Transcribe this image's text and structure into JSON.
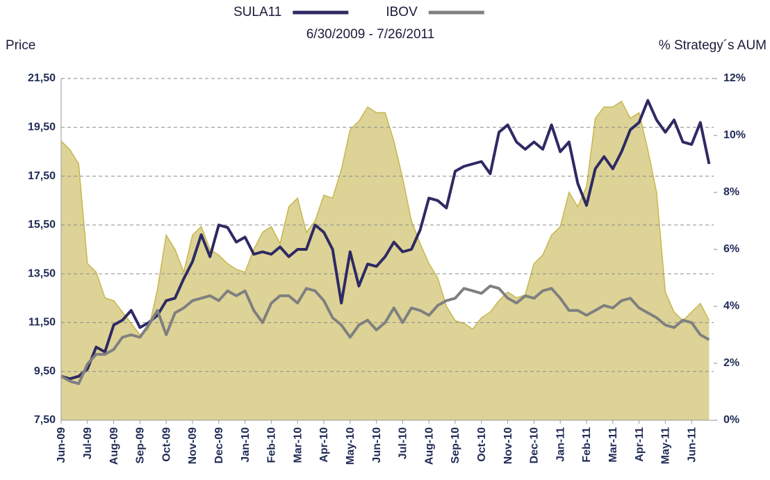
{
  "chart_data": {
    "type": "line",
    "subtitle": "6/30/2009 - 7/26/2011",
    "ylabel": "Price",
    "y2label": "% Strategy´s AUM",
    "categories": [
      "Jun-09",
      null,
      null,
      "Jul-09",
      null,
      null,
      "Aug-09",
      null,
      null,
      "Sep-09",
      null,
      null,
      "Oct-09",
      null,
      null,
      "Nov-09",
      null,
      null,
      "Dec-09",
      null,
      null,
      "Jan-10",
      null,
      null,
      "Feb-10",
      null,
      null,
      "Mar-10",
      null,
      null,
      "Apr-10",
      null,
      null,
      "May-10",
      null,
      null,
      "Jun-10",
      null,
      null,
      "Jul-10",
      null,
      null,
      "Aug-10",
      null,
      null,
      "Sep-10",
      null,
      null,
      "Oct-10",
      null,
      null,
      "Nov-10",
      null,
      null,
      "Dec-10",
      null,
      null,
      "Jan-11",
      null,
      null,
      "Feb-11",
      null,
      null,
      "Mar-11",
      null,
      null,
      "Apr-11",
      null,
      null,
      "May-11",
      null,
      null,
      "Jun-11",
      null,
      null
    ],
    "series": [
      {
        "name": "SULA11",
        "color": "#2e2a63",
        "values": [
          9.3,
          9.2,
          9.3,
          9.6,
          10.5,
          10.3,
          11.4,
          11.6,
          12.0,
          11.3,
          11.5,
          11.8,
          12.4,
          12.5,
          13.3,
          14.0,
          15.1,
          14.2,
          15.5,
          15.4,
          14.8,
          15.0,
          14.3,
          14.4,
          14.3,
          14.6,
          14.2,
          14.5,
          14.5,
          15.5,
          15.2,
          14.5,
          12.3,
          14.4,
          13.0,
          13.9,
          13.8,
          14.2,
          14.8,
          14.4,
          14.5,
          15.3,
          16.6,
          16.5,
          16.2,
          17.7,
          17.9,
          18.0,
          18.1,
          17.6,
          19.3,
          19.6,
          18.9,
          18.6,
          18.9,
          18.6,
          19.6,
          18.5,
          18.9,
          17.2,
          16.3,
          17.8,
          18.3,
          17.8,
          18.5,
          19.4,
          19.7,
          20.6,
          19.8,
          19.3,
          19.8,
          18.9,
          18.8,
          19.7,
          18.0
        ]
      },
      {
        "name": "IBOV",
        "color": "#808080",
        "values": [
          9.3,
          9.1,
          9.0,
          9.8,
          10.2,
          10.2,
          10.4,
          10.9,
          11.0,
          10.9,
          11.4,
          12.0,
          11.0,
          11.9,
          12.1,
          12.4,
          12.5,
          12.6,
          12.4,
          12.8,
          12.6,
          12.8,
          12.0,
          11.5,
          12.3,
          12.6,
          12.6,
          12.3,
          12.9,
          12.8,
          12.4,
          11.7,
          11.4,
          10.9,
          11.4,
          11.6,
          11.2,
          11.5,
          12.1,
          11.5,
          12.1,
          12.0,
          11.8,
          12.2,
          12.4,
          12.5,
          12.9,
          12.8,
          12.7,
          13.0,
          12.9,
          12.5,
          12.3,
          12.6,
          12.5,
          12.8,
          12.9,
          12.5,
          12.0,
          12.0,
          11.8,
          12.0,
          12.2,
          12.1,
          12.4,
          12.5,
          12.1,
          11.9,
          11.7,
          11.4,
          11.3,
          11.6,
          11.5,
          11.0,
          10.8
        ]
      },
      {
        "type": "area",
        "axis": "y2",
        "color": "#ddd397",
        "values": [
          9.8,
          9.5,
          9.0,
          5.5,
          5.2,
          4.3,
          4.2,
          3.8,
          3.4,
          3.0,
          3.2,
          4.6,
          6.5,
          6.0,
          5.2,
          6.5,
          6.8,
          6.0,
          5.8,
          5.5,
          5.3,
          5.2,
          6.0,
          6.6,
          6.8,
          6.2,
          7.5,
          7.8,
          6.6,
          7.0,
          7.9,
          7.8,
          8.8,
          10.2,
          10.5,
          11.0,
          10.8,
          10.8,
          9.8,
          8.5,
          7.0,
          6.2,
          5.5,
          5.0,
          4.0,
          3.5,
          3.4,
          3.2,
          3.6,
          3.8,
          4.2,
          4.5,
          4.3,
          4.4,
          5.5,
          5.8,
          6.5,
          6.8,
          8.0,
          7.5,
          8.2,
          10.6,
          11.0,
          11.0,
          11.2,
          10.6,
          10.8,
          9.5,
          8.0,
          4.5,
          3.8,
          3.5,
          3.8,
          4.1,
          3.5
        ]
      }
    ],
    "ylim": [
      7.5,
      21.5
    ],
    "yticks": [
      {
        "value": 7.5,
        "label": "7,50"
      },
      {
        "value": 9.5,
        "label": "9,50"
      },
      {
        "value": 11.5,
        "label": "11,50"
      },
      {
        "value": 13.5,
        "label": "13,50"
      },
      {
        "value": 15.5,
        "label": "15,50"
      },
      {
        "value": 17.5,
        "label": "17,50"
      },
      {
        "value": 19.5,
        "label": "19,50"
      },
      {
        "value": 21.5,
        "label": "21,50"
      }
    ],
    "y2lim": [
      0,
      12
    ],
    "y2ticks": [
      {
        "value": 0,
        "label": "0%"
      },
      {
        "value": 2,
        "label": "2%"
      },
      {
        "value": 4,
        "label": "4%"
      },
      {
        "value": 6,
        "label": "6%"
      },
      {
        "value": 8,
        "label": "8%"
      },
      {
        "value": 10,
        "label": "10%"
      },
      {
        "value": 12,
        "label": "12%"
      }
    ],
    "grid": true
  }
}
